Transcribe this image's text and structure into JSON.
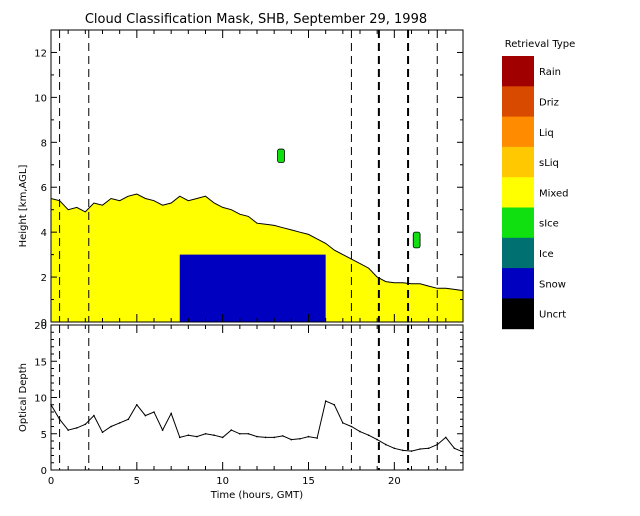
{
  "title": "Cloud Classification Mask, SHB, September 29, 1998",
  "colors": {
    "mixed": "#FFFF00",
    "snow": "#0000C0",
    "rain": "#A00000",
    "driz": "#D84A00",
    "liq": "#FF8C00",
    "sliq": "#FFC800",
    "sice": "#10E010",
    "ice": "#007070",
    "uncrt": "#000000"
  },
  "chart_data": [
    {
      "type": "heatmap",
      "title": "Cloud Classification Mask, SHB, September 29, 1998",
      "ylabel": "Height [km,AGL]",
      "xlim": [
        0,
        24
      ],
      "ylim": [
        0,
        13
      ],
      "xticks": [
        0,
        5,
        10,
        15,
        20
      ],
      "yticks": [
        0,
        2,
        4,
        6,
        8,
        10,
        12
      ],
      "ytick_labels": [
        "0",
        "2",
        "4",
        "6",
        "8",
        "10",
        "12"
      ],
      "legend": {
        "title": "Retrieval Type",
        "placement": "right",
        "entries": [
          {
            "label": "Rain",
            "color": "#A00000"
          },
          {
            "label": "Driz",
            "color": "#D84A00"
          },
          {
            "label": "Liq",
            "color": "#FF8C00"
          },
          {
            "label": "sLiq",
            "color": "#FFC800"
          },
          {
            "label": "Mixed",
            "color": "#FFFF00"
          },
          {
            "label": "sIce",
            "color": "#10E010"
          },
          {
            "label": "Ice",
            "color": "#007070"
          },
          {
            "label": "Snow",
            "color": "#0000C0"
          },
          {
            "label": "Uncrt",
            "color": "#000000"
          }
        ]
      },
      "cloud_top_km": {
        "time": [
          0,
          0.5,
          1,
          1.5,
          2,
          2.5,
          3,
          3.5,
          4,
          4.5,
          5,
          5.5,
          6,
          6.5,
          7,
          7.5,
          8,
          8.5,
          9,
          9.5,
          10,
          10.5,
          11,
          11.5,
          12,
          12.5,
          13,
          13.5,
          14,
          14.5,
          15,
          15.5,
          16,
          16.5,
          17,
          17.5,
          18,
          18.5,
          19,
          19.5,
          20,
          20.5,
          21,
          21.5,
          22,
          22.5,
          23,
          23.5,
          24
        ],
        "height": [
          5.5,
          5.4,
          5.0,
          5.1,
          4.9,
          5.3,
          5.2,
          5.5,
          5.4,
          5.6,
          5.7,
          5.5,
          5.4,
          5.2,
          5.3,
          5.6,
          5.4,
          5.5,
          5.6,
          5.3,
          5.1,
          5.0,
          4.8,
          4.7,
          4.4,
          4.35,
          4.3,
          4.2,
          4.1,
          4.0,
          3.9,
          3.7,
          3.5,
          3.2,
          3.0,
          2.8,
          2.6,
          2.4,
          2.0,
          1.8,
          1.75,
          1.75,
          1.7,
          1.7,
          1.6,
          1.5,
          1.5,
          1.45,
          1.4
        ]
      },
      "snow_region": {
        "x": [
          7.5,
          16
        ],
        "y": [
          0,
          3.0
        ]
      },
      "sice_patches": [
        {
          "x": [
            13.2,
            13.6
          ],
          "y": [
            7.1,
            7.7
          ]
        },
        {
          "x": [
            21.1,
            21.5
          ],
          "y": [
            3.3,
            4.0
          ]
        }
      ],
      "event_lines": {
        "thin": [
          0.5,
          2.2,
          17.5,
          22.5
        ],
        "thick": [
          19.1,
          20.8
        ]
      }
    },
    {
      "type": "line",
      "xlabel": "Time (hours, GMT)",
      "ylabel": "Optical Depth",
      "xlim": [
        0,
        24
      ],
      "ylim": [
        0,
        20
      ],
      "xticks": [
        0,
        5,
        10,
        15,
        20
      ],
      "xtick_labels": [
        "0",
        "5",
        "10",
        "15",
        "20"
      ],
      "yticks": [
        0,
        5,
        10,
        15,
        20
      ],
      "ytick_labels": [
        "0",
        "5",
        "10",
        "15",
        "20"
      ],
      "x": [
        0,
        0.5,
        1,
        1.5,
        2,
        2.5,
        3,
        3.5,
        4,
        4.5,
        5,
        5.5,
        6,
        6.5,
        7,
        7.5,
        8,
        8.5,
        9,
        9.5,
        10,
        10.5,
        11,
        11.5,
        12,
        12.5,
        13,
        13.5,
        14,
        14.5,
        15,
        15.5,
        16,
        16.5,
        17,
        17.5,
        18,
        18.5,
        19,
        19.5,
        20,
        20.5,
        21,
        21.5,
        22,
        22.5,
        23,
        23.5,
        24
      ],
      "values": [
        9.0,
        7.0,
        5.5,
        5.8,
        6.3,
        7.5,
        5.2,
        6.0,
        6.5,
        7.0,
        9.0,
        7.5,
        8.0,
        5.5,
        7.8,
        4.5,
        4.8,
        4.6,
        5.0,
        4.8,
        4.5,
        5.5,
        5.0,
        5.0,
        4.6,
        4.5,
        4.5,
        4.7,
        4.2,
        4.3,
        4.6,
        4.4,
        9.5,
        9.0,
        6.5,
        6.0,
        5.3,
        4.8,
        4.2,
        3.5,
        3.0,
        2.7,
        2.6,
        2.9,
        3.0,
        3.5,
        4.5,
        3.0,
        2.5
      ],
      "event_lines": {
        "thin": [
          0.5,
          2.2,
          17.5,
          22.5
        ],
        "thick": [
          19.1,
          20.8
        ]
      }
    }
  ]
}
